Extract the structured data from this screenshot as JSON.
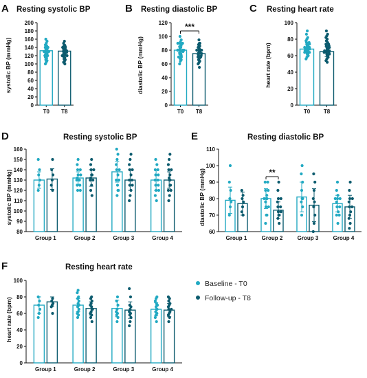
{
  "colors": {
    "baseline": "#21a9c2",
    "followup": "#0c5b6e",
    "axis": "#111111"
  },
  "legend": {
    "baseline_label": "Baseline - T0",
    "followup_label": "Follow-up - T8"
  },
  "chart_data": [
    {
      "id": "A",
      "panel_label": "A",
      "type": "bar",
      "title": "Resting systolic BP",
      "ylabel": "systolic BP (mmHg)",
      "ylim": [
        0,
        200
      ],
      "yticks": [
        0,
        20,
        40,
        60,
        80,
        100,
        120,
        140,
        160,
        180,
        200
      ],
      "categories": [
        "T0",
        "T8"
      ],
      "bars": [
        {
          "name": "T0",
          "value": 132,
          "error": 8,
          "points": [
            100,
            104,
            108,
            110,
            114,
            116,
            118,
            120,
            120,
            120,
            122,
            124,
            125,
            126,
            128,
            128,
            130,
            130,
            130,
            132,
            132,
            134,
            135,
            136,
            138,
            140,
            140,
            140,
            142,
            144,
            146,
            150,
            155,
            160
          ]
        },
        {
          "name": "T8",
          "value": 131,
          "error": 9,
          "points": [
            100,
            104,
            106,
            110,
            112,
            115,
            118,
            120,
            120,
            120,
            122,
            124,
            125,
            126,
            128,
            128,
            130,
            130,
            130,
            132,
            132,
            134,
            135,
            136,
            138,
            140,
            140,
            140,
            142,
            144,
            145,
            150,
            155
          ]
        }
      ]
    },
    {
      "id": "B",
      "panel_label": "B",
      "type": "bar",
      "title": "Resting diastolic BP",
      "ylabel": "diastolic BP (mmHg)",
      "ylim": [
        0,
        120
      ],
      "yticks": [
        0,
        20,
        40,
        60,
        80,
        100,
        120
      ],
      "categories": [
        "T0",
        "T8"
      ],
      "significance": {
        "between": [
          "T0",
          "T8"
        ],
        "label": "***"
      },
      "bars": [
        {
          "name": "T0",
          "value": 80,
          "error": 6,
          "points": [
            60,
            64,
            66,
            68,
            70,
            70,
            70,
            72,
            74,
            75,
            76,
            78,
            78,
            80,
            80,
            80,
            80,
            80,
            82,
            84,
            85,
            86,
            88,
            90,
            90,
            90,
            92,
            95,
            100
          ]
        },
        {
          "name": "T8",
          "value": 75,
          "error": 6,
          "points": [
            55,
            60,
            62,
            64,
            66,
            68,
            70,
            70,
            70,
            72,
            72,
            74,
            75,
            75,
            76,
            78,
            78,
            80,
            80,
            80,
            82,
            84,
            85,
            86,
            88,
            90,
            90,
            95
          ]
        }
      ]
    },
    {
      "id": "C",
      "panel_label": "C",
      "type": "bar",
      "title": "Resting heart rate",
      "ylabel": "heart rate (bpm)",
      "ylim": [
        0,
        100
      ],
      "yticks": [
        0,
        20,
        40,
        60,
        80,
        100
      ],
      "categories": [
        "T0",
        "T8"
      ],
      "bars": [
        {
          "name": "T0",
          "value": 68,
          "error": 5,
          "points": [
            56,
            58,
            60,
            60,
            62,
            62,
            64,
            64,
            64,
            66,
            66,
            66,
            68,
            68,
            68,
            68,
            70,
            70,
            70,
            72,
            72,
            74,
            74,
            76,
            76,
            78,
            80,
            82,
            86,
            90
          ]
        },
        {
          "name": "T8",
          "value": 65,
          "error": 6,
          "points": [
            52,
            54,
            56,
            58,
            58,
            60,
            60,
            62,
            62,
            64,
            64,
            64,
            66,
            66,
            66,
            68,
            68,
            70,
            70,
            72,
            72,
            74,
            74,
            76,
            78,
            80,
            82,
            84,
            86,
            90
          ]
        }
      ]
    },
    {
      "id": "D",
      "panel_label": "D",
      "type": "bar",
      "title": "Resting systolic BP",
      "ylabel": "systolic BP (mmHg)",
      "ylim": [
        80,
        160
      ],
      "yticks": [
        80,
        90,
        100,
        110,
        120,
        130,
        140,
        150,
        160
      ],
      "categories": [
        "Group 1",
        "Group 2",
        "Group 3",
        "Group 4"
      ],
      "series": [
        {
          "name": "Baseline - T0",
          "values": [
            130,
            132,
            138,
            130
          ],
          "errors": [
            8,
            6,
            10,
            10
          ],
          "points": [
            [
              120,
              125,
              130,
              135,
              140,
              150
            ],
            [
              120,
              120,
              125,
              125,
              130,
              130,
              130,
              132,
              135,
              135,
              140,
              140,
              145,
              150
            ],
            [
              115,
              120,
              120,
              125,
              130,
              130,
              135,
              140,
              140,
              145,
              150,
              155,
              160
            ],
            [
              110,
              115,
              120,
              120,
              125,
              125,
              130,
              130,
              130,
              135,
              135,
              140,
              140,
              145,
              150
            ]
          ]
        },
        {
          "name": "Follow-up - T8",
          "values": [
            131,
            132,
            130,
            130
          ],
          "errors": [
            10,
            8,
            10,
            8
          ],
          "points": [
            [
              120,
              125,
              130,
              135,
              140,
              150
            ],
            [
              115,
              120,
              125,
              130,
              130,
              130,
              132,
              135,
              135,
              140,
              140,
              145,
              150
            ],
            [
              110,
              115,
              120,
              125,
              125,
              130,
              130,
              135,
              140,
              140,
              145,
              150,
              155
            ],
            [
              110,
              115,
              120,
              120,
              125,
              125,
              130,
              130,
              132,
              135,
              140,
              140,
              145,
              150,
              155
            ]
          ]
        }
      ]
    },
    {
      "id": "E",
      "panel_label": "E",
      "type": "bar",
      "title": "Resting diastolic BP",
      "ylabel": "diastolic BP (mmHg)",
      "ylim": [
        60,
        110
      ],
      "yticks": [
        60,
        70,
        80,
        90,
        100,
        110
      ],
      "categories": [
        "Group 1",
        "Group 2",
        "Group 3",
        "Group 4"
      ],
      "significance": {
        "category": "Group 2",
        "label": "**"
      },
      "series": [
        {
          "name": "Baseline - T0",
          "values": [
            79,
            80,
            81,
            77
          ],
          "errors": [
            8,
            6,
            9,
            5
          ],
          "points": [
            [
              70,
              75,
              78,
              80,
              85,
              90,
              100
            ],
            [
              65,
              70,
              70,
              75,
              75,
              78,
              80,
              80,
              80,
              82,
              85,
              85,
              90,
              90
            ],
            [
              70,
              75,
              78,
              80,
              80,
              85,
              90,
              95,
              100
            ],
            [
              65,
              70,
              70,
              72,
              75,
              75,
              78,
              80,
              80,
              80,
              82,
              85,
              90
            ]
          ]
        },
        {
          "name": "Follow-up - T8",
          "values": [
            77,
            73,
            76,
            75
          ],
          "errors": [
            7,
            5,
            10,
            7
          ],
          "points": [
            [
              70,
              72,
              75,
              78,
              80,
              82,
              85
            ],
            [
              65,
              68,
              70,
              70,
              72,
              72,
              75,
              75,
              78,
              80,
              80,
              85,
              90
            ],
            [
              60,
              65,
              70,
              75,
              78,
              80,
              85,
              90,
              95
            ],
            [
              62,
              65,
              68,
              70,
              72,
              75,
              75,
              78,
              80,
              80,
              85,
              90
            ]
          ]
        }
      ]
    },
    {
      "id": "F",
      "panel_label": "F",
      "type": "bar",
      "title": "Resting heart rate",
      "ylabel": "heart rate (bpm)",
      "ylim": [
        0,
        100
      ],
      "yticks": [
        0,
        20,
        40,
        60,
        80,
        100
      ],
      "categories": [
        "Group 1",
        "Group 2",
        "Group 3",
        "Group 4"
      ],
      "series": [
        {
          "name": "Baseline - T0",
          "values": [
            70,
            70,
            66,
            65
          ],
          "errors": [
            10,
            8,
            10,
            8
          ],
          "points": [
            [
              55,
              60,
              65,
              70,
              75,
              80
            ],
            [
              55,
              58,
              60,
              62,
              65,
              68,
              70,
              70,
              72,
              75,
              78,
              80,
              85,
              88
            ],
            [
              50,
              55,
              58,
              60,
              62,
              65,
              70,
              75,
              80
            ],
            [
              50,
              55,
              58,
              60,
              62,
              65,
              65,
              68,
              70,
              70,
              72,
              75,
              78,
              80
            ]
          ]
        },
        {
          "name": "Follow-up - T8",
          "values": [
            74,
            66,
            64,
            64
          ],
          "errors": [
            6,
            8,
            10,
            8
          ],
          "points": [
            [
              60,
              68,
              70,
              72,
              75,
              78
            ],
            [
              50,
              55,
              58,
              60,
              62,
              65,
              65,
              68,
              70,
              72,
              75,
              78,
              80
            ],
            [
              45,
              50,
              55,
              58,
              60,
              62,
              65,
              68,
              70,
              80,
              90
            ],
            [
              50,
              55,
              58,
              60,
              62,
              65,
              65,
              68,
              70,
              72,
              75,
              78,
              80
            ]
          ]
        }
      ]
    }
  ]
}
